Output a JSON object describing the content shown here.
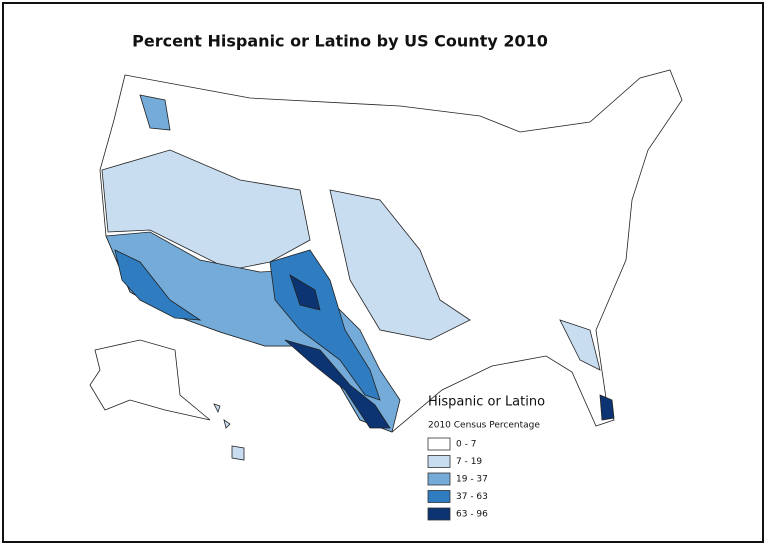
{
  "title": "Percent Hispanic or Latino by US County 2010",
  "legend": {
    "title": "Hispanic or Latino",
    "subtitle": "2010 Census Percentage",
    "items": [
      {
        "label": "0 - 7",
        "color": "#ffffff"
      },
      {
        "label": "7 - 19",
        "color": "#c9ddf1"
      },
      {
        "label": "19 - 37",
        "color": "#74abd8"
      },
      {
        "label": "37 - 63",
        "color": "#2f7cc0"
      },
      {
        "label": "63 - 96",
        "color": "#0c3372"
      }
    ]
  }
}
